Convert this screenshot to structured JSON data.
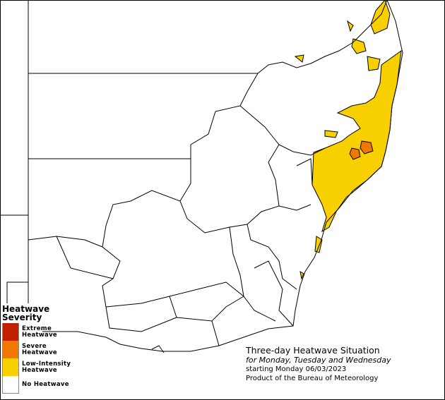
{
  "legend": {
    "title": "Heatwave Severity",
    "items": [
      {
        "label": "Extreme Heatwave",
        "color": "#c02000"
      },
      {
        "label": "Severe Heatwave",
        "color": "#f07800"
      },
      {
        "label": "Low-Intensity Heatwave",
        "color": "#f8d000"
      },
      {
        "label": "No Heatwave",
        "color": "#ffffff"
      }
    ]
  },
  "info": {
    "title": "Three-day Heatwave Situation",
    "days": "for Monday, Tuesday and Wednesday",
    "start": "starting Monday 06/03/2023",
    "credit": "Product of the Bureau of Meteorology"
  }
}
